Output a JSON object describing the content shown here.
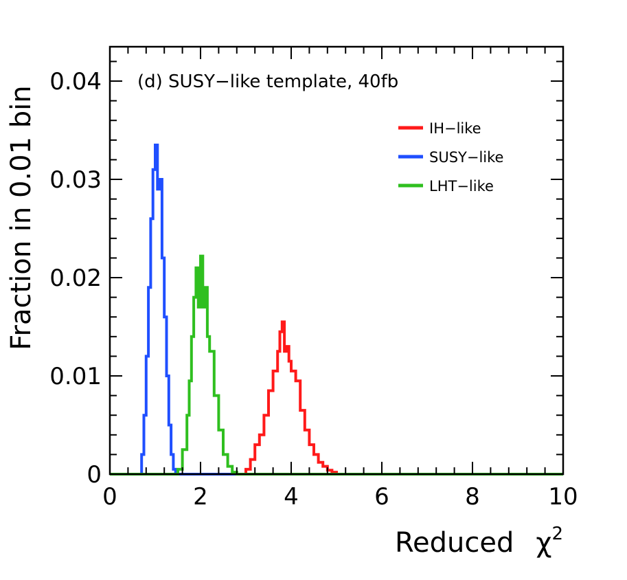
{
  "chart_data": {
    "type": "line",
    "title": "(d) SUSY−like template, 40fb",
    "xlabel": "Reduced",
    "xlabel_symbol": "χ",
    "xlabel_superscript": "2",
    "ylabel": "Fraction in 0.01 bin",
    "xlim": [
      0,
      10
    ],
    "ylim": [
      0,
      0.0435
    ],
    "x_ticks": [
      0,
      2,
      4,
      6,
      8,
      10
    ],
    "x_tick_labels": [
      "0",
      "2",
      "4",
      "6",
      "8",
      "10"
    ],
    "y_ticks": [
      0,
      0.01,
      0.02,
      0.03,
      0.04
    ],
    "y_tick_labels": [
      "0",
      "0.01",
      "0.02",
      "0.03",
      "0.04"
    ],
    "grid": false,
    "legend_position": "top-right",
    "series": [
      {
        "name": "IH−like",
        "color": "#ff1a1a",
        "x": [
          0,
          2.9,
          3.0,
          3.1,
          3.2,
          3.3,
          3.4,
          3.5,
          3.6,
          3.7,
          3.75,
          3.8,
          3.85,
          3.9,
          3.95,
          4.0,
          4.1,
          4.2,
          4.3,
          4.4,
          4.5,
          4.6,
          4.7,
          4.8,
          4.9,
          5.0,
          10
        ],
        "values": [
          0,
          0,
          0.0005,
          0.0015,
          0.003,
          0.004,
          0.006,
          0.0085,
          0.0105,
          0.0125,
          0.0145,
          0.0155,
          0.0125,
          0.013,
          0.0115,
          0.0105,
          0.0095,
          0.0065,
          0.0045,
          0.003,
          0.002,
          0.0012,
          0.0008,
          0.0004,
          0.0002,
          0,
          0
        ]
      },
      {
        "name": "SUSY−like",
        "color": "#1f4fff",
        "x": [
          0,
          0.65,
          0.7,
          0.75,
          0.8,
          0.85,
          0.9,
          0.95,
          1.0,
          1.05,
          1.1,
          1.15,
          1.2,
          1.25,
          1.3,
          1.35,
          1.4,
          1.45,
          1.5,
          10
        ],
        "values": [
          0,
          0,
          0.002,
          0.006,
          0.012,
          0.019,
          0.026,
          0.031,
          0.0335,
          0.029,
          0.03,
          0.022,
          0.016,
          0.01,
          0.005,
          0.002,
          0.0005,
          0.0001,
          0,
          0
        ]
      },
      {
        "name": "LHT−like",
        "color": "#2fbf1f",
        "x": [
          0,
          1.4,
          1.5,
          1.6,
          1.7,
          1.75,
          1.8,
          1.85,
          1.9,
          1.95,
          2.0,
          2.05,
          2.1,
          2.15,
          2.2,
          2.3,
          2.4,
          2.5,
          2.6,
          2.7,
          2.8,
          10
        ],
        "values": [
          0,
          0,
          0.0005,
          0.0025,
          0.006,
          0.0095,
          0.014,
          0.018,
          0.021,
          0.017,
          0.0222,
          0.017,
          0.019,
          0.014,
          0.0125,
          0.008,
          0.0045,
          0.002,
          0.0008,
          0.0002,
          0,
          0
        ]
      }
    ]
  }
}
